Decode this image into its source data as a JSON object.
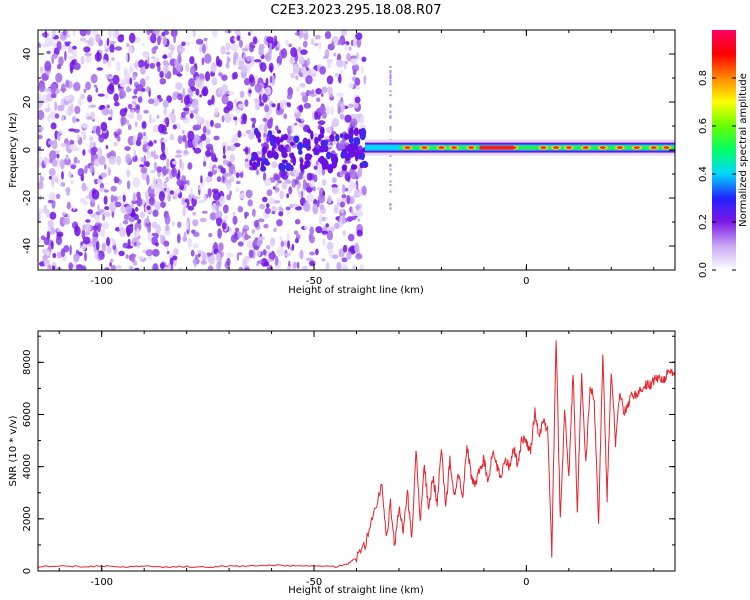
{
  "title": "C2E3.2023.295.18.08.R07",
  "colors": {
    "line": "#e8232d",
    "axis": "#000000",
    "background": "#ffffff"
  },
  "chart_data": [
    {
      "type": "heatmap",
      "xlabel": "Height of straight line (km)",
      "ylabel": "Frequency (Hz)",
      "xlim": [
        -115,
        35
      ],
      "ylim": [
        -50,
        50
      ],
      "xticks": [
        -100,
        -50,
        0
      ],
      "yticks": [
        -40,
        -20,
        0,
        20,
        40
      ],
      "colorbar": {
        "label": "Normalized spectral amplitude",
        "range": [
          0.0,
          1.0
        ],
        "ticks": [
          "0.0",
          "0.2",
          "0.4",
          "0.6",
          "0.8"
        ],
        "colormap": [
          "#ffffff",
          "#c9a8f2",
          "#7b19e6",
          "#2222ff",
          "#00d8ff",
          "#00ff66",
          "#66ff00",
          "#ffff00",
          "#ff8800",
          "#ff0000",
          "#ff0066"
        ]
      },
      "grid": false,
      "legend": "none"
    },
    {
      "type": "line",
      "xlabel": "Height of straight line (km)",
      "ylabel": "SNR (10 * v/v)",
      "xlim": [
        -115,
        35
      ],
      "ylim": [
        0,
        9200
      ],
      "xticks": [
        -100,
        -50,
        0
      ],
      "yticks": [
        0,
        2000,
        4000,
        6000,
        8000
      ],
      "grid": false,
      "legend": "none",
      "series": [
        {
          "x": [
            -115,
            -110,
            -105,
            -100,
            -95,
            -90,
            -85,
            -80,
            -75,
            -70,
            -65,
            -60,
            -55,
            -50,
            -45,
            -42,
            -40,
            -38,
            -36,
            -34,
            -33,
            -32,
            -31,
            -30,
            -29,
            -28,
            -27,
            -26,
            -25,
            -24,
            -23,
            -22,
            -21,
            -20,
            -19,
            -18,
            -17,
            -16,
            -15,
            -14,
            -13,
            -12,
            -11,
            -10,
            -9,
            -8,
            -7,
            -6,
            -5,
            -4,
            -3,
            -2,
            -1,
            0,
            1,
            2,
            3,
            4,
            5,
            6,
            7,
            8,
            9,
            10,
            11,
            12,
            13,
            14,
            15,
            16,
            17,
            18,
            19,
            20,
            21,
            22,
            23,
            24,
            25,
            26,
            27,
            28,
            29,
            30,
            31,
            32,
            33,
            34,
            35
          ],
          "values": [
            180,
            200,
            170,
            190,
            160,
            180,
            150,
            170,
            160,
            180,
            190,
            230,
            190,
            220,
            160,
            280,
            500,
            1000,
            2200,
            3300,
            1200,
            2600,
            900,
            2400,
            1500,
            3000,
            1200,
            4600,
            1900,
            4100,
            2300,
            3600,
            2600,
            4700,
            2400,
            4300,
            2900,
            3800,
            2700,
            4800,
            3700,
            3200,
            3900,
            4300,
            3400,
            4600,
            4000,
            3600,
            4400,
            3900,
            4700,
            4100,
            5100,
            4900,
            4600,
            6100,
            5200,
            5800,
            5400,
            700,
            9000,
            1900,
            6200,
            3600,
            7600,
            2400,
            7400,
            4100,
            7100,
            6500,
            1800,
            8400,
            2800,
            7700,
            4900,
            6900,
            6100,
            6400,
            6800,
            6700,
            7000,
            7200,
            7100,
            7300,
            7400,
            7300,
            7500,
            7600,
            7600
          ]
        }
      ]
    }
  ]
}
